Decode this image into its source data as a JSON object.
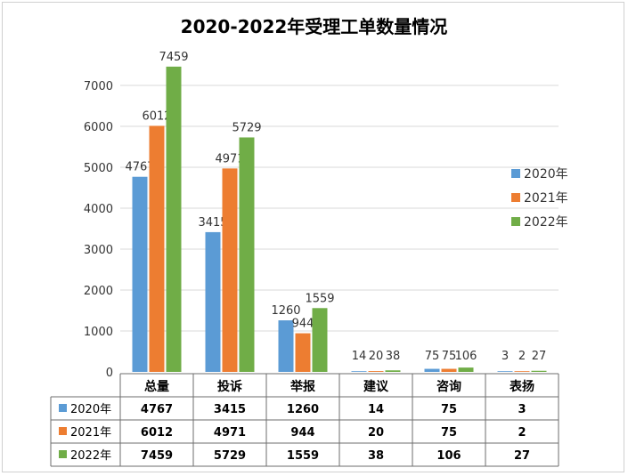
{
  "chart_data": {
    "type": "bar",
    "title": "2020-2022年受理工单数量情况",
    "categories": [
      "总量",
      "投诉",
      "举报",
      "建议",
      "咨询",
      "表扬"
    ],
    "series": [
      {
        "name": "2020年",
        "color": "#5b9bd5",
        "values": [
          4767,
          3415,
          1260,
          14,
          75,
          3
        ]
      },
      {
        "name": "2021年",
        "color": "#ed7d31",
        "values": [
          6012,
          4971,
          944,
          20,
          75,
          2
        ]
      },
      {
        "name": "2022年",
        "color": "#70ad47",
        "values": [
          7459,
          5729,
          1559,
          38,
          106,
          27
        ]
      }
    ],
    "yticks": [
      0,
      1000,
      2000,
      3000,
      4000,
      5000,
      6000,
      7000
    ],
    "ylim": [
      0,
      8000
    ],
    "grid": true,
    "legend_position": "right",
    "data_table": true
  }
}
